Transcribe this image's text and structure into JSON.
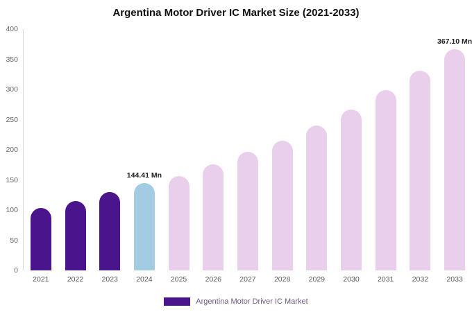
{
  "chart_data": {
    "type": "bar",
    "title": "Argentina Motor Driver IC Market Size (2021-2033)",
    "categories": [
      "2021",
      "2022",
      "2023",
      "2024",
      "2025",
      "2026",
      "2027",
      "2028",
      "2029",
      "2030",
      "2031",
      "2032",
      "2033"
    ],
    "values": [
      103,
      115,
      130,
      144.41,
      156,
      176,
      196,
      215,
      240,
      267,
      299,
      331,
      367.1
    ],
    "unit": "Mn",
    "ylim": [
      0,
      400
    ],
    "yticks": [
      0,
      50,
      100,
      150,
      200,
      250,
      300,
      350,
      400
    ],
    "point_labels": [
      null,
      null,
      null,
      "144.41 Mn",
      null,
      null,
      null,
      null,
      null,
      null,
      null,
      null,
      "367.10 Mn"
    ],
    "bar_colors": [
      "#4a148c",
      "#4a148c",
      "#4a148c",
      "#a3cce3",
      "#e9cfec",
      "#e9cfec",
      "#e9cfec",
      "#e9cfec",
      "#e9cfec",
      "#e9cfec",
      "#e9cfec",
      "#e9cfec",
      "#e9cfec"
    ],
    "colors": {
      "historical": "#4a148c",
      "highlight": "#a3cce3",
      "forecast": "#e9cfec",
      "legend_swatch": "#4a148c",
      "legend_text": "#6d597f",
      "axis_text": "#666666"
    },
    "legend": [
      "Argentina Motor Driver IC Market"
    ],
    "grid": "none",
    "legend_position": "bottom-center"
  }
}
